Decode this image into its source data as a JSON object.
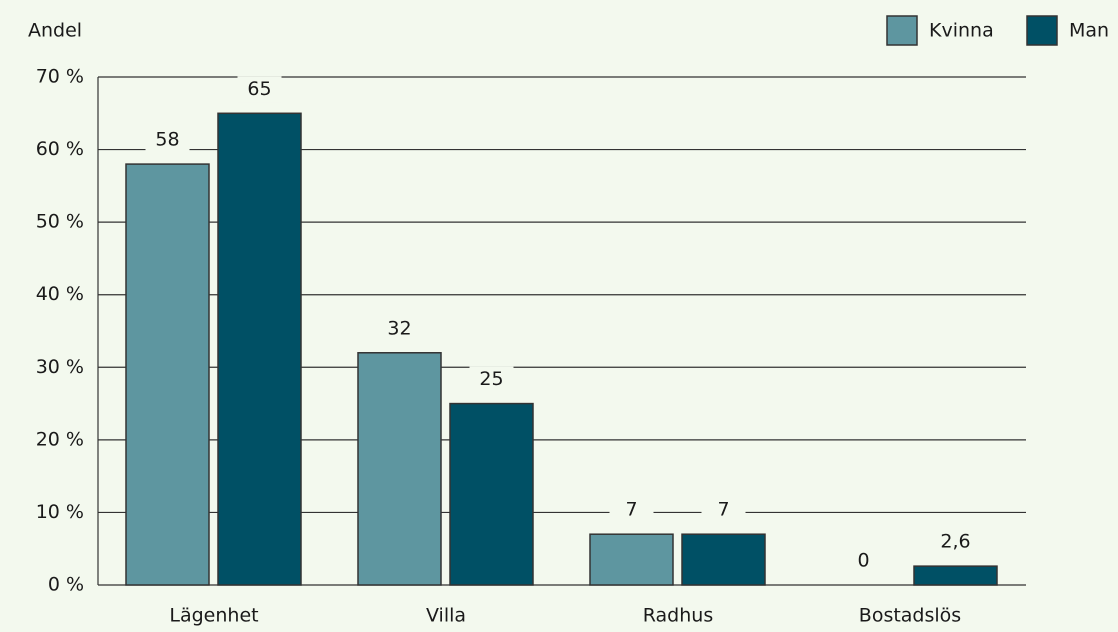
{
  "chart_data": {
    "type": "bar",
    "y_label": "Andel",
    "categories": [
      "Lägenhet",
      "Villa",
      "Radhus",
      "Bostadslös"
    ],
    "series": [
      {
        "name": "Kvinna",
        "color": "#5e96a0",
        "values": [
          58,
          32,
          7,
          0
        ]
      },
      {
        "name": "Man",
        "color": "#005065",
        "values": [
          65,
          25,
          7,
          2.6
        ],
        "value_labels": [
          "65",
          "25",
          "7",
          "2,6"
        ]
      }
    ],
    "ylim": [
      0,
      70
    ],
    "yticks": [
      {
        "value": 0,
        "label": "0 %"
      },
      {
        "value": 10,
        "label": "10 %"
      },
      {
        "value": 20,
        "label": "20 %"
      },
      {
        "value": 30,
        "label": "30 %"
      },
      {
        "value": 40,
        "label": "40 %"
      },
      {
        "value": 50,
        "label": "50 %"
      },
      {
        "value": 60,
        "label": "60 %"
      },
      {
        "value": 70,
        "label": "70 %"
      }
    ],
    "grid": true,
    "legend": "top-right"
  }
}
